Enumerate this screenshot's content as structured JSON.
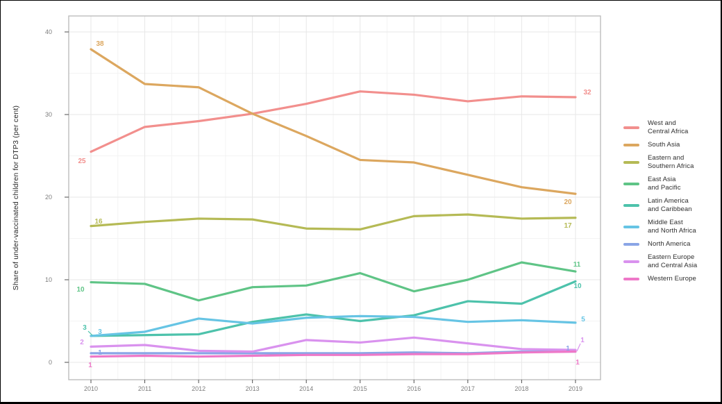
{
  "figure": {
    "y_axis_title": "Share of under-vaccinated children for DTP3 (per cent)"
  },
  "chart_data": {
    "type": "line",
    "title": "",
    "xlabel": "",
    "ylabel": "Share of under-vaccinated children for DTP3 (per cent)",
    "x": [
      2010,
      2011,
      2012,
      2013,
      2014,
      2015,
      2016,
      2017,
      2018,
      2019
    ],
    "ylim": [
      0,
      42
    ],
    "yticks": [
      0,
      10,
      20,
      30,
      40
    ],
    "grid": true,
    "legend_position": "right",
    "series": [
      {
        "name": "West and Central Africa",
        "legend_lines": [
          "West and",
          "Central Africa"
        ],
        "color": "#f28f8d",
        "values": [
          25.5,
          28.5,
          29.2,
          30.1,
          31.3,
          32.8,
          32.4,
          31.6,
          32.2,
          32.1
        ],
        "label_start": "25",
        "label_end": "32"
      },
      {
        "name": "South Asia",
        "legend_lines": [
          "South Asia"
        ],
        "color": "#dca75f",
        "values": [
          37.9,
          33.7,
          33.3,
          30.1,
          27.4,
          24.5,
          24.2,
          22.7,
          21.2,
          20.4
        ],
        "label_start": "38",
        "label_end": "20"
      },
      {
        "name": "Eastern and Southern Africa",
        "legend_lines": [
          "Eastern and",
          "Southern Africa"
        ],
        "color": "#b5ba55",
        "values": [
          16.5,
          17.0,
          17.4,
          17.3,
          16.2,
          16.1,
          17.7,
          17.9,
          17.4,
          17.5
        ],
        "label_start": "16",
        "label_end": "17"
      },
      {
        "name": "East Asia and Pacific",
        "legend_lines": [
          "East Asia",
          "and Pacific"
        ],
        "color": "#5fc486",
        "values": [
          9.7,
          9.5,
          7.5,
          9.1,
          9.3,
          10.8,
          8.6,
          10.0,
          12.1,
          11.0
        ],
        "label_start": "10",
        "label_end": "11"
      },
      {
        "name": "Latin America and Caribbean",
        "legend_lines": [
          "Latin America",
          "and Caribbean"
        ],
        "color": "#4dc2ab",
        "values": [
          3.2,
          3.3,
          3.4,
          4.9,
          5.8,
          5.0,
          5.7,
          7.4,
          7.1,
          9.8
        ],
        "label_start": "3",
        "label_end": "10"
      },
      {
        "name": "Middle East and North Africa",
        "legend_lines": [
          "Middle East",
          "and North Africa"
        ],
        "color": "#66c4e4",
        "values": [
          3.2,
          3.7,
          5.3,
          4.7,
          5.4,
          5.6,
          5.5,
          4.9,
          5.1,
          4.8
        ],
        "label_start": "3",
        "label_end": "5"
      },
      {
        "name": "North America",
        "legend_lines": [
          "North America"
        ],
        "color": "#8aa5e6",
        "values": [
          1.1,
          1.1,
          1.1,
          1.1,
          1.1,
          1.1,
          1.2,
          1.1,
          1.3,
          1.3
        ],
        "label_start": "1",
        "label_end": "1"
      },
      {
        "name": "Eastern Europe and Central Asia",
        "legend_lines": [
          "Eastern Europe",
          "and Central Asia"
        ],
        "color": "#d992ee",
        "values": [
          1.9,
          2.1,
          1.4,
          1.3,
          2.7,
          2.4,
          3.0,
          2.3,
          1.6,
          1.5
        ],
        "label_start": "2",
        "label_end": "1"
      },
      {
        "name": "Western Europe",
        "legend_lines": [
          "Western Europe"
        ],
        "color": "#ee78c8",
        "values": [
          0.7,
          0.8,
          0.7,
          0.8,
          0.9,
          0.9,
          1.0,
          1.0,
          1.2,
          1.3
        ],
        "label_start": "1",
        "label_end": "1"
      }
    ]
  }
}
